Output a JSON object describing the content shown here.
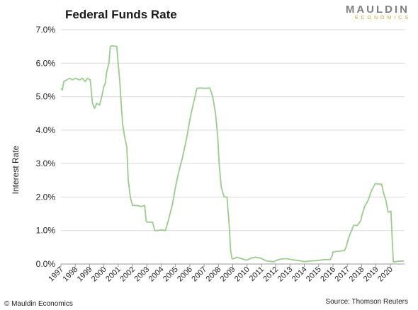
{
  "chart_data": {
    "type": "line",
    "title": "Federal Funds Rate",
    "xlabel": "",
    "ylabel": "Interest Rate",
    "ylim": [
      0,
      7
    ],
    "xlim": [
      1997,
      2021
    ],
    "yticks": [
      "0.0%",
      "1.0%",
      "2.0%",
      "3.0%",
      "4.0%",
      "5.0%",
      "6.0%",
      "7.0%"
    ],
    "xticks": [
      "1997",
      "1998",
      "1999",
      "2000",
      "2001",
      "2002",
      "2003",
      "2004",
      "2005",
      "2006",
      "2007",
      "2008",
      "2009",
      "2010",
      "2011",
      "2012",
      "2013",
      "2014",
      "2015",
      "2016",
      "2017",
      "2018",
      "2019",
      "2020"
    ],
    "grid": true,
    "series": [
      {
        "color": "#9acd8c",
        "points": [
          [
            1997.0,
            5.25
          ],
          [
            1997.1,
            5.2
          ],
          [
            1997.2,
            5.45
          ],
          [
            1997.4,
            5.5
          ],
          [
            1997.6,
            5.55
          ],
          [
            1997.8,
            5.5
          ],
          [
            1998.0,
            5.55
          ],
          [
            1998.3,
            5.5
          ],
          [
            1998.5,
            5.55
          ],
          [
            1998.7,
            5.45
          ],
          [
            1998.85,
            5.55
          ],
          [
            1999.05,
            5.5
          ],
          [
            1999.2,
            4.8
          ],
          [
            1999.35,
            4.65
          ],
          [
            1999.5,
            4.8
          ],
          [
            1999.7,
            4.75
          ],
          [
            1999.85,
            5.0
          ],
          [
            2000.0,
            5.3
          ],
          [
            2000.1,
            5.4
          ],
          [
            2000.2,
            5.75
          ],
          [
            2000.35,
            6.0
          ],
          [
            2000.45,
            6.5
          ],
          [
            2000.6,
            6.52
          ],
          [
            2000.9,
            6.5
          ],
          [
            2001.0,
            6.0
          ],
          [
            2001.1,
            5.5
          ],
          [
            2001.3,
            4.2
          ],
          [
            2001.45,
            3.8
          ],
          [
            2001.6,
            3.5
          ],
          [
            2001.7,
            2.5
          ],
          [
            2001.85,
            2.0
          ],
          [
            2002.0,
            1.75
          ],
          [
            2002.3,
            1.75
          ],
          [
            2002.6,
            1.72
          ],
          [
            2002.85,
            1.75
          ],
          [
            2002.95,
            1.3
          ],
          [
            2003.0,
            1.25
          ],
          [
            2003.4,
            1.25
          ],
          [
            2003.55,
            1.0
          ],
          [
            2003.75,
            1.0
          ],
          [
            2004.0,
            1.02
          ],
          [
            2004.3,
            1.0
          ],
          [
            2004.5,
            1.3
          ],
          [
            2004.8,
            1.8
          ],
          [
            2005.0,
            2.3
          ],
          [
            2005.2,
            2.7
          ],
          [
            2005.5,
            3.2
          ],
          [
            2005.8,
            3.8
          ],
          [
            2006.0,
            4.3
          ],
          [
            2006.2,
            4.7
          ],
          [
            2006.5,
            5.25
          ],
          [
            2006.8,
            5.26
          ],
          [
            2007.0,
            5.25
          ],
          [
            2007.4,
            5.26
          ],
          [
            2007.6,
            5.0
          ],
          [
            2007.8,
            4.5
          ],
          [
            2007.95,
            3.8
          ],
          [
            2008.05,
            3.0
          ],
          [
            2008.2,
            2.3
          ],
          [
            2008.4,
            2.0
          ],
          [
            2008.6,
            2.0
          ],
          [
            2008.75,
            1.2
          ],
          [
            2008.85,
            0.4
          ],
          [
            2008.95,
            0.16
          ],
          [
            2009.0,
            0.15
          ],
          [
            2009.3,
            0.2
          ],
          [
            2009.6,
            0.16
          ],
          [
            2009.9,
            0.12
          ],
          [
            2010.0,
            0.12
          ],
          [
            2010.3,
            0.18
          ],
          [
            2010.6,
            0.2
          ],
          [
            2010.9,
            0.18
          ],
          [
            2011.0,
            0.17
          ],
          [
            2011.3,
            0.1
          ],
          [
            2011.6,
            0.08
          ],
          [
            2011.9,
            0.07
          ],
          [
            2012.0,
            0.1
          ],
          [
            2012.4,
            0.15
          ],
          [
            2012.8,
            0.16
          ],
          [
            2013.0,
            0.14
          ],
          [
            2013.4,
            0.11
          ],
          [
            2013.8,
            0.09
          ],
          [
            2014.0,
            0.07
          ],
          [
            2014.4,
            0.09
          ],
          [
            2014.8,
            0.1
          ],
          [
            2015.0,
            0.11
          ],
          [
            2015.4,
            0.13
          ],
          [
            2015.8,
            0.13
          ],
          [
            2015.95,
            0.24
          ],
          [
            2016.0,
            0.36
          ],
          [
            2016.4,
            0.38
          ],
          [
            2016.8,
            0.4
          ],
          [
            2016.95,
            0.54
          ],
          [
            2017.0,
            0.65
          ],
          [
            2017.2,
            0.9
          ],
          [
            2017.45,
            1.16
          ],
          [
            2017.7,
            1.15
          ],
          [
            2017.95,
            1.3
          ],
          [
            2018.0,
            1.42
          ],
          [
            2018.2,
            1.7
          ],
          [
            2018.45,
            1.9
          ],
          [
            2018.7,
            2.2
          ],
          [
            2018.95,
            2.4
          ],
          [
            2019.0,
            2.4
          ],
          [
            2019.4,
            2.38
          ],
          [
            2019.55,
            2.1
          ],
          [
            2019.7,
            1.9
          ],
          [
            2019.85,
            1.55
          ],
          [
            2019.95,
            1.56
          ],
          [
            2020.05,
            1.58
          ],
          [
            2020.15,
            0.65
          ],
          [
            2020.22,
            0.06
          ],
          [
            2020.5,
            0.08
          ],
          [
            2020.95,
            0.09
          ]
        ]
      }
    ]
  },
  "logo": {
    "main": "MAULDIN",
    "sub": "ECONOMICS",
    "main_color": "#808080",
    "sub_color": "#c9a227"
  },
  "footer": {
    "copyright": "© Mauldin Economics",
    "source": "Source: Thomson Reuters"
  }
}
